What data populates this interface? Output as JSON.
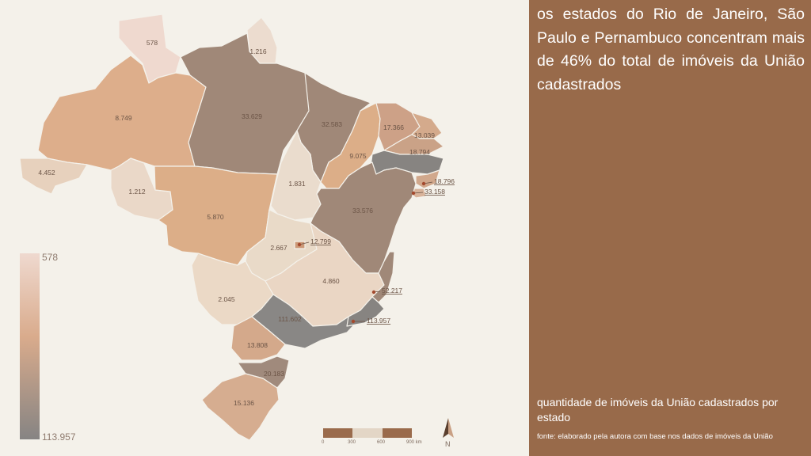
{
  "panel": {
    "headline": "os estados do Rio de Janeiro, São Paulo e Pernambuco concentram mais de 46% do total de imóveis da União cadastrados",
    "caption": "quantidade de imóveis da União cadastrados por estado",
    "source": "fonte: elaborado pela autora com base nos dados de imóveis da União"
  },
  "map": {
    "states": [
      {
        "id": "RR",
        "value": "578",
        "color": "#efd9cf"
      },
      {
        "id": "AP",
        "value": "1.216",
        "color": "#ecdccf"
      },
      {
        "id": "AM",
        "value": "8.749",
        "color": "#ddae8b"
      },
      {
        "id": "PA",
        "value": "33.629",
        "color": "#a08878"
      },
      {
        "id": "AC",
        "value": "4.452",
        "color": "#e7d1bd"
      },
      {
        "id": "RO",
        "value": "1.212",
        "color": "#ead8c8"
      },
      {
        "id": "MT",
        "value": "5.870",
        "color": "#dcae88"
      },
      {
        "id": "MA",
        "value": "32.583",
        "color": "#a08878"
      },
      {
        "id": "PI",
        "value": "9.075",
        "color": "#dcae88"
      },
      {
        "id": "CE",
        "value": "17.366",
        "color": "#cda187"
      },
      {
        "id": "RN",
        "value": "13.039",
        "color": "#d4aa8c"
      },
      {
        "id": "PB",
        "value": "18.794",
        "color": "#caa287"
      },
      {
        "id": "PE",
        "value": "",
        "color": "#878481"
      },
      {
        "id": "AL",
        "value": "",
        "color": "#d1a88c"
      },
      {
        "id": "SE",
        "value": "",
        "color": "#d8b39a"
      },
      {
        "id": "TO",
        "value": "1.831",
        "color": "#eadccd"
      },
      {
        "id": "BA",
        "value": "33.576",
        "color": "#a08878"
      },
      {
        "id": "GO",
        "value": "2.667",
        "color": "#e9dac8"
      },
      {
        "id": "DF",
        "value": "",
        "color": "#cc9978"
      },
      {
        "id": "MG",
        "value": "4.860",
        "color": "#ead6c4"
      },
      {
        "id": "MS",
        "value": "2.045",
        "color": "#ebd9c6"
      },
      {
        "id": "ES",
        "value": "",
        "color": "#a08878"
      },
      {
        "id": "SP",
        "value": "111.602",
        "color": "#898785"
      },
      {
        "id": "RJ",
        "value": "",
        "color": "#878481"
      },
      {
        "id": "PR",
        "value": "13.808",
        "color": "#d4a98b"
      },
      {
        "id": "SC",
        "value": "20.183",
        "color": "#a08a7c"
      },
      {
        "id": "RS",
        "value": "15.136",
        "color": "#d6ad90"
      }
    ],
    "callouts": [
      {
        "id": "AL",
        "value": "18.796"
      },
      {
        "id": "SE",
        "value": "33.158"
      },
      {
        "id": "DF",
        "value": "12.799"
      },
      {
        "id": "ES",
        "value": "52.217"
      },
      {
        "id": "RJ",
        "value": "113.957"
      }
    ]
  },
  "legend": {
    "min_label": "578",
    "max_label": "113.957",
    "color_low": "#efd9cf",
    "color_mid": "#d9ab8c",
    "color_high": "#868483"
  },
  "scalebar": {
    "ticks": [
      "0",
      "300",
      "600",
      "900 km"
    ],
    "colors": [
      "#9a6b4c",
      "#e3d6c6",
      "#9a6b4c"
    ]
  },
  "north_arrow": {
    "label": "N",
    "icon": "north-arrow-icon"
  }
}
